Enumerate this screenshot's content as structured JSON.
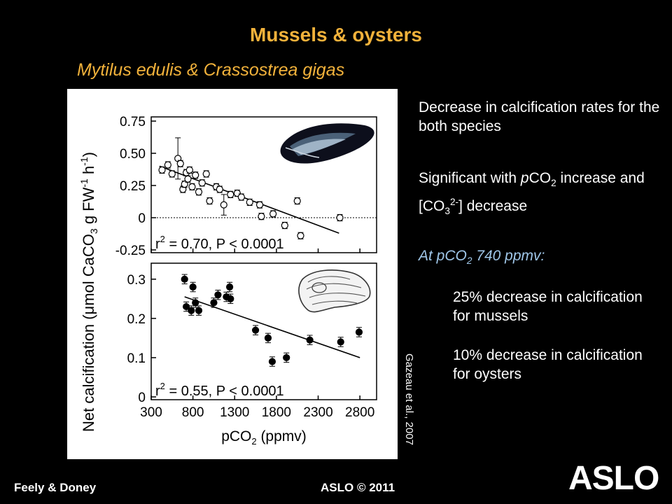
{
  "slide": {
    "title": "Mussels & oysters",
    "subtitle": "Mytilus edulis  & Crassostrea gigas",
    "citation": "Gazeau et al., 2007",
    "footer_left": "Feely & Doney",
    "footer_center": "ASLO © 2011",
    "logo_text": "ASLO",
    "bullet1": "Decrease in calcification rates for the both species",
    "bullet2_a": "Significant with ",
    "bullet2_b": "p",
    "bullet2_c": "CO",
    "bullet2_d": "2",
    "bullet2_e": " increase and [CO",
    "bullet2_f": "3",
    "bullet2_g": "2-",
    "bullet2_h": "] decrease",
    "emph_a": "At pCO",
    "emph_b": "2",
    "emph_c": " 740 ppmv:",
    "sub1": "25% decrease in calcification for mussels",
    "sub2": "10% decrease in calcification for oysters",
    "accent_color": "#f2b23b",
    "emphasis_color": "#9fc6e8"
  },
  "chart_data": [
    {
      "type": "scatter",
      "species": "mussel",
      "icon": "mussel-shell-icon",
      "ylim": [
        -0.25,
        0.75
      ],
      "xlim": [
        300,
        3000
      ],
      "yticks": [
        "0.75",
        "0.50",
        "0.25",
        "0",
        "-0.25"
      ],
      "annotation": "r2 = 0.70, P < 0.0001",
      "zero_line": true,
      "marker": "open-circle",
      "points": [
        {
          "x": 430,
          "y": 0.37
        },
        {
          "x": 500,
          "y": 0.41
        },
        {
          "x": 550,
          "y": 0.34
        },
        {
          "x": 620,
          "y": 0.46,
          "err": 0.16
        },
        {
          "x": 650,
          "y": 0.42
        },
        {
          "x": 680,
          "y": 0.22
        },
        {
          "x": 700,
          "y": 0.26
        },
        {
          "x": 720,
          "y": 0.35
        },
        {
          "x": 740,
          "y": 0.3
        },
        {
          "x": 760,
          "y": 0.37
        },
        {
          "x": 790,
          "y": 0.24
        },
        {
          "x": 830,
          "y": 0.33
        },
        {
          "x": 870,
          "y": 0.2
        },
        {
          "x": 910,
          "y": 0.27
        },
        {
          "x": 960,
          "y": 0.34
        },
        {
          "x": 1000,
          "y": 0.13
        },
        {
          "x": 1080,
          "y": 0.24
        },
        {
          "x": 1120,
          "y": 0.22
        },
        {
          "x": 1170,
          "y": 0.1,
          "err": 0.08
        },
        {
          "x": 1250,
          "y": 0.18
        },
        {
          "x": 1330,
          "y": 0.19
        },
        {
          "x": 1380,
          "y": 0.16
        },
        {
          "x": 1480,
          "y": 0.12
        },
        {
          "x": 1600,
          "y": 0.1
        },
        {
          "x": 1620,
          "y": 0.01
        },
        {
          "x": 1760,
          "y": 0.03
        },
        {
          "x": 1900,
          "y": -0.06
        },
        {
          "x": 2050,
          "y": 0.13
        },
        {
          "x": 2090,
          "y": -0.14
        },
        {
          "x": 2560,
          "y": 0.0
        }
      ],
      "trend": [
        [
          400,
          0.4
        ],
        [
          2550,
          -0.12
        ]
      ]
    },
    {
      "type": "scatter",
      "species": "oyster",
      "icon": "oyster-shell-icon",
      "ylim": [
        0,
        0.33
      ],
      "xlim": [
        300,
        3000
      ],
      "yticks": [
        "0.3",
        "0.2",
        "0.1",
        "0"
      ],
      "xticks": [
        "300",
        "800",
        "1300",
        "1800",
        "2300",
        "2800"
      ],
      "xlabel": "pCO2 (ppmv)",
      "annotation": "r2 = 0.55, P < 0.0001",
      "marker": "filled-circle",
      "points": [
        {
          "x": 700,
          "y": 0.3
        },
        {
          "x": 720,
          "y": 0.23
        },
        {
          "x": 780,
          "y": 0.22
        },
        {
          "x": 800,
          "y": 0.28
        },
        {
          "x": 830,
          "y": 0.24
        },
        {
          "x": 870,
          "y": 0.22
        },
        {
          "x": 1050,
          "y": 0.24
        },
        {
          "x": 1100,
          "y": 0.26
        },
        {
          "x": 1200,
          "y": 0.255
        },
        {
          "x": 1240,
          "y": 0.28
        },
        {
          "x": 1250,
          "y": 0.25
        },
        {
          "x": 1550,
          "y": 0.17
        },
        {
          "x": 1700,
          "y": 0.15
        },
        {
          "x": 1750,
          "y": 0.09
        },
        {
          "x": 1920,
          "y": 0.1
        },
        {
          "x": 2200,
          "y": 0.145
        },
        {
          "x": 2570,
          "y": 0.14
        },
        {
          "x": 2790,
          "y": 0.165
        }
      ],
      "trend": [
        [
          700,
          0.255
        ],
        [
          2800,
          0.1
        ]
      ]
    }
  ],
  "chart_axis": {
    "ylabel": "Net calcification (μmol CaCO3 g FW-1 h-1)"
  }
}
